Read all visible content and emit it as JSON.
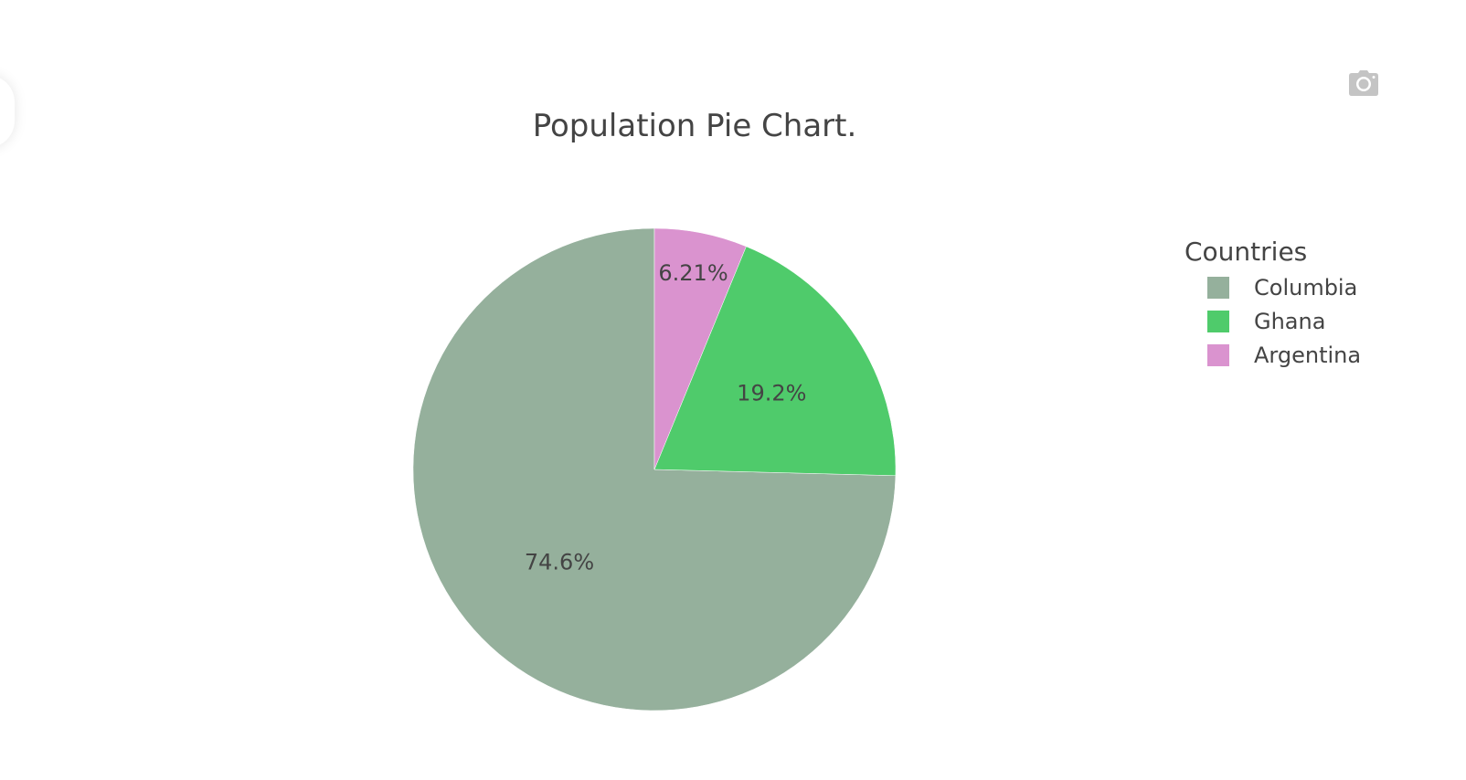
{
  "toolbar": {
    "download_icon": "camera-icon"
  },
  "chart_data": {
    "type": "pie",
    "title": "Population Pie Chart.",
    "legend_title": "Countries",
    "legend_position": "right",
    "labels": [
      "Columbia",
      "Ghana",
      "Argentina"
    ],
    "values": [
      74.6,
      19.2,
      6.21
    ],
    "value_labels": [
      "74.6%",
      "19.2%",
      "6.21%"
    ],
    "colors": [
      "#95b09c",
      "#4fcb6b",
      "#da93cf"
    ],
    "direction": "counterclockwise",
    "rotation_start": "top"
  }
}
